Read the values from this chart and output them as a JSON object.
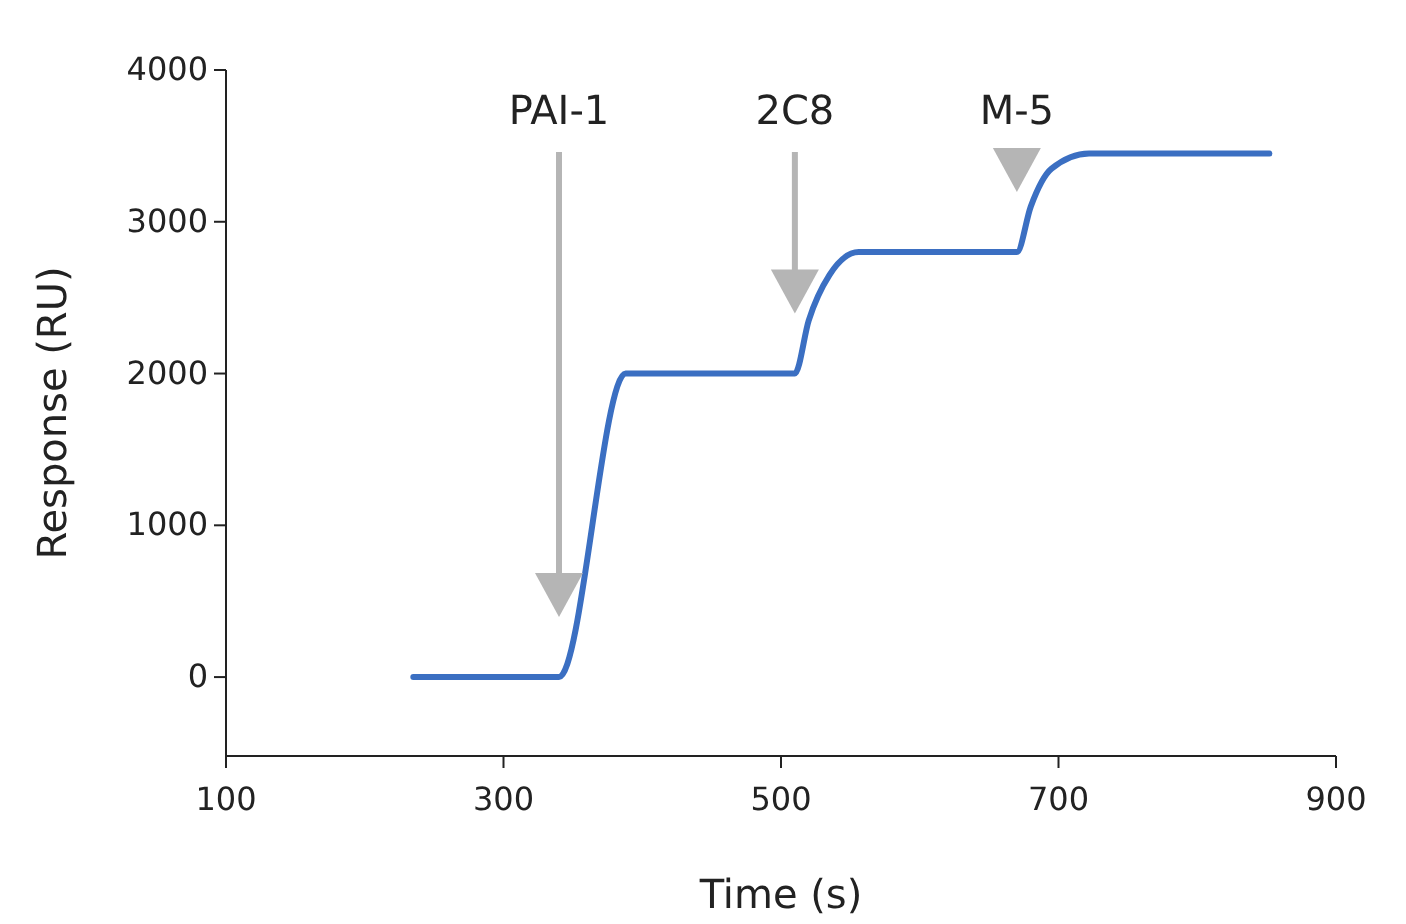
{
  "chart_data": {
    "type": "line",
    "xlabel": "Time (s)",
    "ylabel": "Response (RU)",
    "xlim": [
      100,
      900
    ],
    "ylim": [
      -520,
      4000
    ],
    "xticks": [
      100,
      300,
      500,
      700,
      900
    ],
    "yticks": [
      0,
      1000,
      2000,
      3000,
      4000
    ],
    "grid": false,
    "marker": "none",
    "line_style": "solid",
    "series": [
      {
        "color": "#3b6fc2",
        "x": [
          235,
          340,
          388,
          510,
          520,
          535,
          556,
          670,
          680,
          695,
          722,
          852
        ],
        "values": [
          0,
          0,
          2000,
          2000,
          2350,
          2650,
          2800,
          2800,
          3100,
          3350,
          3450,
          3450
        ]
      }
    ],
    "annotations": [
      "PAI-1",
      "2C8",
      "M-5"
    ]
  }
}
